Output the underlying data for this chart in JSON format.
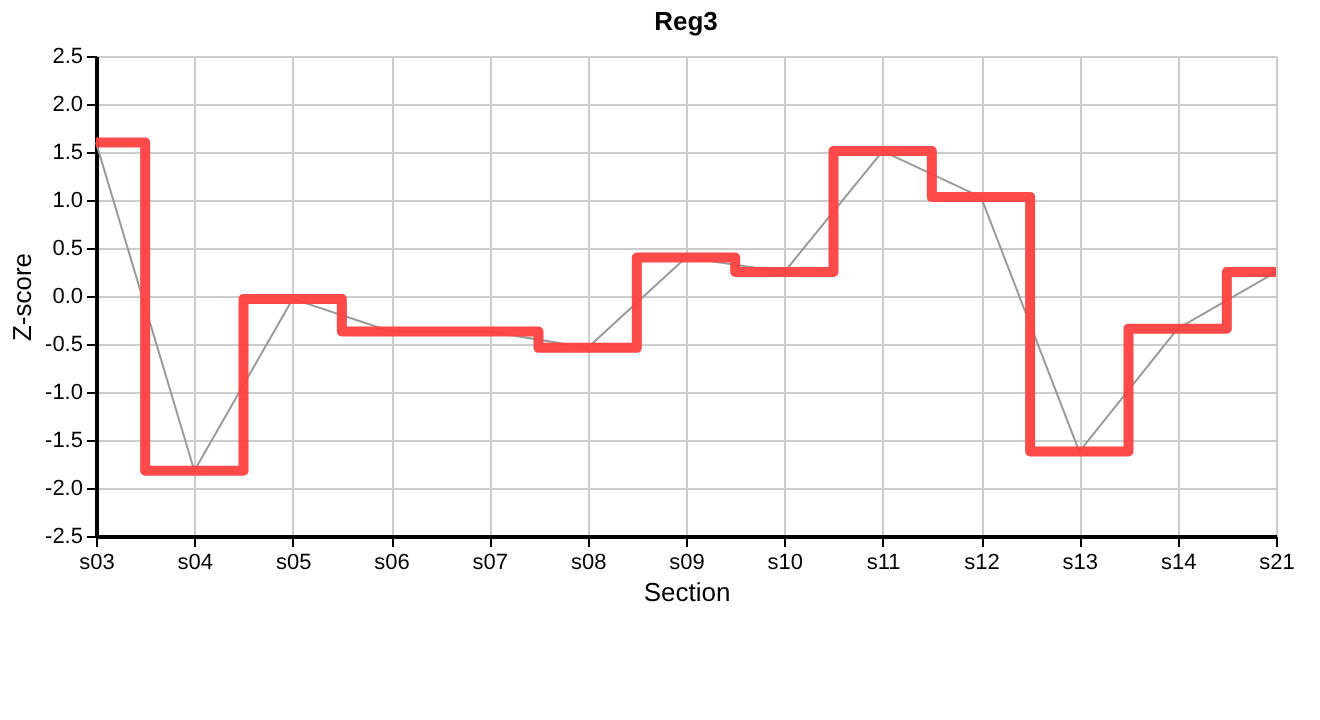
{
  "chart_data": {
    "type": "line",
    "title": "Reg3",
    "xlabel": "Section",
    "ylabel": "Z-score",
    "categories": [
      "s03",
      "s04",
      "s05",
      "s06",
      "s07",
      "s08",
      "s09",
      "s10",
      "s11",
      "s12",
      "s13",
      "s14",
      "s21"
    ],
    "series": [
      {
        "color": "#999999",
        "values": [
          1.6,
          -1.82,
          -0.03,
          -0.37,
          -0.37,
          -0.54,
          0.4,
          0.25,
          1.51,
          1.03,
          -1.62,
          -0.34,
          0.25
        ]
      },
      {
        "type": "step",
        "color": "#ff4040",
        "values": [
          1.6,
          -1.82,
          -0.03,
          -0.37,
          -0.37,
          -0.54,
          0.4,
          0.25,
          1.51,
          1.03,
          -1.62,
          -0.34,
          0.25
        ]
      }
    ],
    "ylim": [
      -2.5,
      2.5
    ],
    "yticks": [
      {
        "value": -2.5,
        "label": "-2.5"
      },
      {
        "value": -2,
        "label": "-2.0"
      },
      {
        "value": -1.5,
        "label": "-1.5"
      },
      {
        "value": -1,
        "label": "-1.0"
      },
      {
        "value": -0.5,
        "label": "-0.5"
      },
      {
        "value": 0,
        "label": "0.0"
      },
      {
        "value": 0.5,
        "label": "0.5"
      },
      {
        "value": 1,
        "label": "1.0"
      },
      {
        "value": 1.5,
        "label": "1.5"
      },
      {
        "value": 2,
        "label": "2.0"
      },
      {
        "value": 2.5,
        "label": "2.5"
      }
    ],
    "grid": true
  }
}
